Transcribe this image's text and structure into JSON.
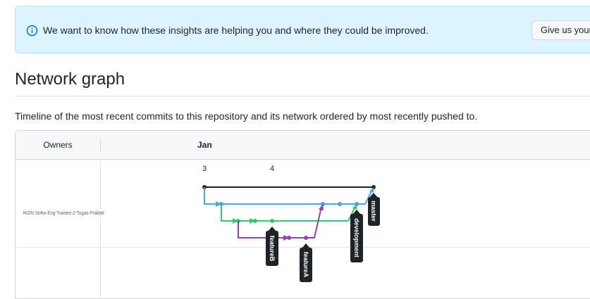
{
  "banner": {
    "icon": "info-icon",
    "message": "We want to know how these insights are helping you and where they could be improved.",
    "button_label": "Give us your feedback"
  },
  "page": {
    "title": "Network graph",
    "description": "Timeline of the most recent commits to this repository and its network ordered by most recently pushed to."
  },
  "network": {
    "owners_header": "Owners",
    "month": "Jan",
    "days": [
      "3",
      "4"
    ],
    "owner": "IKON-Softw-Eng-Trainee-2-Tugas-Praktek",
    "branches": [
      {
        "name": "master",
        "color": "#1f2328"
      },
      {
        "name": "development",
        "color": "#4ba3dc"
      },
      {
        "name": "featureB",
        "color": "#3cc46c"
      },
      {
        "name": "featureA",
        "color": "#8e44ad"
      }
    ]
  }
}
